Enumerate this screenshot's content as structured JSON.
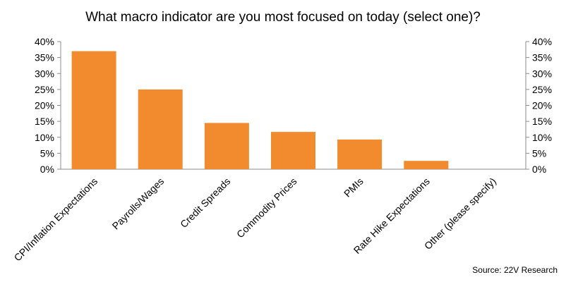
{
  "chart_data": {
    "type": "bar",
    "title": "What macro indicator are you most focused on today (select one)?",
    "categories": [
      "CPI/Inflation Expectations",
      "Payrolls/Wages",
      "Credit Spreads",
      "Commodity Prices",
      "PMIs",
      "Rate Hike Expectations",
      "Other (please specify)"
    ],
    "values": [
      0.37,
      0.25,
      0.145,
      0.117,
      0.093,
      0.026,
      0.0
    ],
    "ylim": [
      0,
      0.4
    ],
    "yticks": [
      "0%",
      "5%",
      "10%",
      "15%",
      "20%",
      "25%",
      "30%",
      "35%",
      "40%"
    ],
    "secondary_yticks": [
      "0%",
      "5%",
      "10%",
      "15%",
      "20%",
      "25%",
      "30%",
      "35%",
      "40%"
    ],
    "bar_color": "#F28A2E",
    "grid": false,
    "legend": "none",
    "source": "Source: 22V Research"
  }
}
